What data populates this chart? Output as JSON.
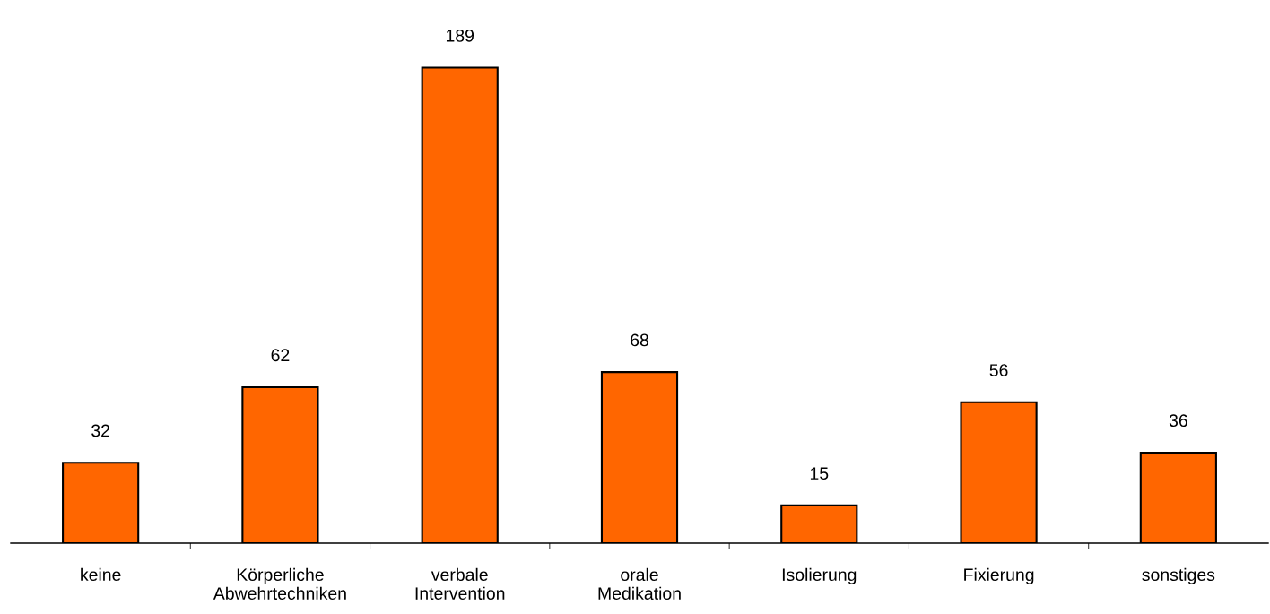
{
  "chart_data": {
    "type": "bar",
    "categories": [
      "keine",
      "Körperliche\nAbwehrtechniken",
      "verbale\nIntervention",
      "orale\nMedikation",
      "Isolierung",
      "Fixierung",
      "sonstiges"
    ],
    "values": [
      32,
      62,
      189,
      68,
      15,
      56,
      36
    ],
    "color": "#ff6600",
    "data_labels": true,
    "grid": false,
    "legend": false
  }
}
